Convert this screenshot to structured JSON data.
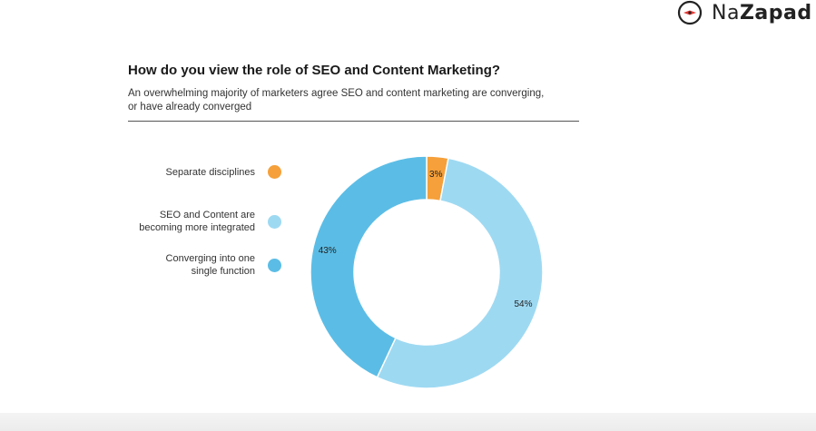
{
  "brand": {
    "name_part1": "Na",
    "name_part2": "Zapad",
    "icon": "compass-icon"
  },
  "chart_data": {
    "type": "pie",
    "title": "How do you view the role of SEO and Content Marketing?",
    "subtitle": "An overwhelming majority of marketers agree SEO and content marketing are converging, or have already converged",
    "legend_position": "left",
    "slices": [
      {
        "label": "Separate disciplines",
        "value": 3,
        "display": "3%",
        "color": "#f5a03a"
      },
      {
        "label": "SEO and Content are becoming more integrated",
        "value": 54,
        "display": "54%",
        "color": "#9ed9f2"
      },
      {
        "label": "Converging into one single function",
        "value": 43,
        "display": "43%",
        "color": "#5bbde6"
      }
    ]
  }
}
